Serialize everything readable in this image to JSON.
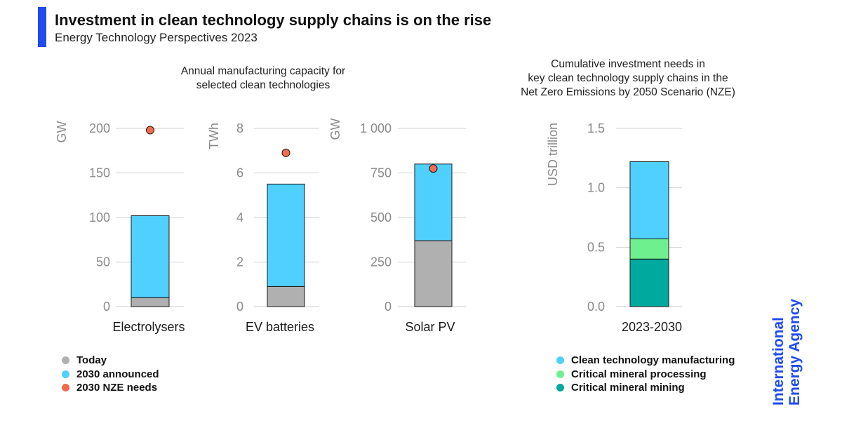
{
  "header": {
    "title": "Investment in clean technology supply chains is on the rise",
    "subtitle": "Energy Technology Perspectives 2023",
    "accent_color": "#1E4CF0"
  },
  "left_group": {
    "caption_line1": "Annual manufacturing capacity for",
    "caption_line2": "selected clean technologies"
  },
  "right_group": {
    "caption_line1": "Cumulative investment needs in",
    "caption_line2": "key clean technology supply chains in the",
    "caption_line3": "Net Zero Emissions by 2050 Scenario (NZE)"
  },
  "legend_left": [
    {
      "label": "Today",
      "color": "#B0B0B0"
    },
    {
      "label": "2030 announced",
      "color": "#4FD0FF"
    },
    {
      "label": "2030 NZE needs",
      "color": "#F26B4E"
    }
  ],
  "legend_right": [
    {
      "label": "Clean technology manufacturing",
      "color": "#4FD0FF"
    },
    {
      "label": "Critical mineral processing",
      "color": "#6EF08E"
    },
    {
      "label": "Critical mineral mining",
      "color": "#00A99D"
    }
  ],
  "organization": {
    "line1": "International",
    "line2": "Energy Agency",
    "color": "#1E4CF0"
  },
  "chart_data": [
    {
      "type": "bar",
      "stacked": true,
      "categories": [
        "Electrolysers"
      ],
      "ylabel": "GW",
      "ylim": [
        0,
        200
      ],
      "yticks": [
        0,
        50,
        100,
        150,
        200
      ],
      "ytick_labels": [
        "0",
        "50",
        "100",
        "150",
        "200"
      ],
      "series": [
        {
          "name": "Today",
          "values": [
            10
          ],
          "color": "#B0B0B0"
        },
        {
          "name": "2030 announced",
          "values": [
            92
          ],
          "color": "#4FD0FF"
        }
      ],
      "markers": [
        {
          "name": "2030 NZE needs",
          "values": [
            198
          ],
          "color": "#F26B4E"
        }
      ],
      "grid": true
    },
    {
      "type": "bar",
      "stacked": true,
      "categories": [
        "EV batteries"
      ],
      "ylabel": "TWh",
      "ylim": [
        0,
        8
      ],
      "yticks": [
        0,
        2,
        4,
        6,
        8
      ],
      "ytick_labels": [
        "0",
        "2",
        "4",
        "6",
        "8"
      ],
      "series": [
        {
          "name": "Today",
          "values": [
            0.9
          ],
          "color": "#B0B0B0"
        },
        {
          "name": "2030 announced",
          "values": [
            4.6
          ],
          "color": "#4FD0FF"
        }
      ],
      "markers": [
        {
          "name": "2030 NZE needs",
          "values": [
            6.9
          ],
          "color": "#F26B4E"
        }
      ],
      "grid": true
    },
    {
      "type": "bar",
      "stacked": true,
      "categories": [
        "Solar PV"
      ],
      "ylabel": "GW",
      "ylim": [
        0,
        1000
      ],
      "yticks": [
        0,
        250,
        500,
        750,
        1000
      ],
      "ytick_labels": [
        "0",
        "250",
        "500",
        "750",
        "1 000"
      ],
      "series": [
        {
          "name": "Today",
          "values": [
            370
          ],
          "color": "#B0B0B0"
        },
        {
          "name": "2030 announced",
          "values": [
            430
          ],
          "color": "#4FD0FF"
        }
      ],
      "markers": [
        {
          "name": "2030 NZE needs",
          "values": [
            775
          ],
          "color": "#F26B4E"
        }
      ],
      "grid": true
    },
    {
      "type": "bar",
      "stacked": true,
      "categories": [
        "2023-2030"
      ],
      "ylabel": "USD trillion",
      "ylim": [
        0,
        1.5
      ],
      "yticks": [
        0,
        0.5,
        1.0,
        1.5
      ],
      "ytick_labels": [
        "0.0",
        "0.5",
        "1.0",
        "1.5"
      ],
      "series": [
        {
          "name": "Critical mineral mining",
          "values": [
            0.4
          ],
          "color": "#00A99D"
        },
        {
          "name": "Critical mineral processing",
          "values": [
            0.17
          ],
          "color": "#6EF08E"
        },
        {
          "name": "Clean technology manufacturing",
          "values": [
            0.65
          ],
          "color": "#4FD0FF"
        }
      ],
      "grid": true
    }
  ]
}
